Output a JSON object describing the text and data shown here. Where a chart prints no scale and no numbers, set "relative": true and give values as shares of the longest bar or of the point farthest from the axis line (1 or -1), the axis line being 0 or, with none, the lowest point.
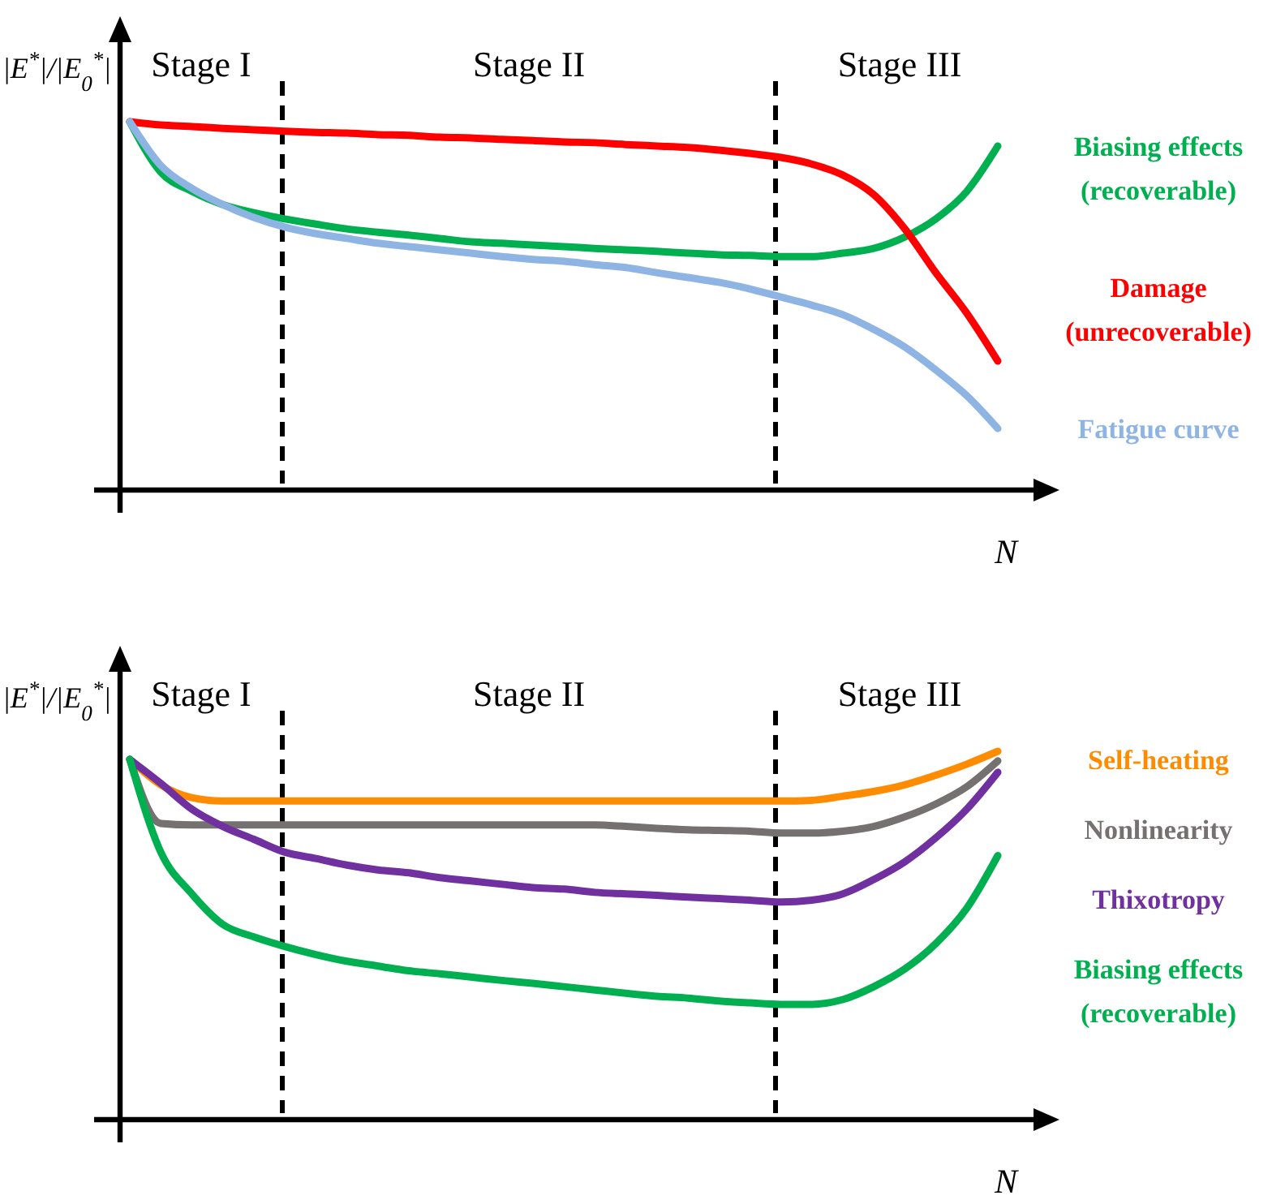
{
  "chart_data": [
    {
      "type": "line",
      "relative": true,
      "xlabel": "N",
      "ylabel": "|E$^{*}$|/|E$_{0}$$^{*}$|",
      "categories": [
        null,
        null,
        null,
        null,
        null,
        null,
        null,
        null,
        null,
        null,
        null,
        null,
        null,
        null,
        null,
        null,
        null,
        null,
        null,
        null,
        null,
        null,
        null,
        null,
        null,
        null,
        null,
        null,
        null
      ],
      "series": [
        {
          "name": "Biasing effects (recoverable)",
          "color": "#00b050",
          "values": [
            1.0,
            0.863,
            0.811,
            0.775,
            0.753,
            0.736,
            0.722,
            0.709,
            0.7,
            0.692,
            0.683,
            0.674,
            0.67,
            0.665,
            0.661,
            0.656,
            0.652,
            0.648,
            0.643,
            0.639,
            0.637,
            0.634,
            0.634,
            0.643,
            0.656,
            0.687,
            0.736,
            0.811,
            0.934
          ]
        },
        {
          "name": "Damage (unrecoverable)",
          "color": "#ff0000",
          "values": [
            1.0,
            0.991,
            0.987,
            0.982,
            0.978,
            0.974,
            0.971,
            0.969,
            0.965,
            0.963,
            0.958,
            0.956,
            0.952,
            0.949,
            0.945,
            0.943,
            0.938,
            0.934,
            0.93,
            0.923,
            0.914,
            0.903,
            0.885,
            0.855,
            0.802,
            0.709,
            0.59,
            0.48,
            0.35
          ]
        },
        {
          "name": "Fatigue curve",
          "color": "#8eb4e3",
          "values": [
            1.0,
            0.881,
            0.819,
            0.775,
            0.74,
            0.714,
            0.696,
            0.683,
            0.67,
            0.661,
            0.652,
            0.643,
            0.634,
            0.626,
            0.621,
            0.612,
            0.604,
            0.59,
            0.577,
            0.564,
            0.546,
            0.524,
            0.502,
            0.476,
            0.436,
            0.388,
            0.326,
            0.256,
            0.167
          ]
        }
      ],
      "annotations": [
        "Stage I",
        "Stage II",
        "Stage III"
      ]
    },
    {
      "type": "line",
      "relative": true,
      "xlabel": "N",
      "ylabel": "|E$^{*}$|/|E$_{0}$$^{*}$|",
      "categories": [
        null,
        null,
        null,
        null,
        null,
        null,
        null,
        null,
        null,
        null,
        null,
        null,
        null,
        null,
        null,
        null,
        null,
        null,
        null,
        null,
        null,
        null,
        null,
        null,
        null,
        null,
        null,
        null,
        null
      ],
      "series": [
        {
          "name": "Self-heating",
          "color": "#ff8c00",
          "values": [
            0.978,
            0.909,
            0.874,
            0.865,
            0.865,
            0.865,
            0.865,
            0.865,
            0.865,
            0.865,
            0.865,
            0.865,
            0.865,
            0.865,
            0.865,
            0.865,
            0.865,
            0.865,
            0.865,
            0.865,
            0.865,
            0.865,
            0.867,
            0.878,
            0.891,
            0.909,
            0.935,
            0.965,
            1.0
          ]
        },
        {
          "name": "Nonlinearity",
          "color": "#767171",
          "values": [
            0.978,
            0.804,
            0.8,
            0.8,
            0.8,
            0.8,
            0.8,
            0.8,
            0.8,
            0.8,
            0.8,
            0.8,
            0.8,
            0.8,
            0.8,
            0.8,
            0.796,
            0.791,
            0.787,
            0.785,
            0.783,
            0.778,
            0.778,
            0.783,
            0.796,
            0.822,
            0.857,
            0.904,
            0.974
          ]
        },
        {
          "name": "Thixotropy",
          "color": "#7030a0",
          "values": [
            0.978,
            0.913,
            0.843,
            0.796,
            0.761,
            0.726,
            0.709,
            0.691,
            0.678,
            0.67,
            0.657,
            0.648,
            0.639,
            0.63,
            0.626,
            0.617,
            0.613,
            0.609,
            0.604,
            0.6,
            0.596,
            0.591,
            0.596,
            0.613,
            0.652,
            0.7,
            0.765,
            0.843,
            0.943
          ]
        },
        {
          "name": "Biasing effects (recoverable)",
          "color": "#00b050",
          "values": [
            0.978,
            0.726,
            0.613,
            0.53,
            0.496,
            0.47,
            0.448,
            0.43,
            0.417,
            0.404,
            0.396,
            0.387,
            0.378,
            0.37,
            0.361,
            0.352,
            0.343,
            0.335,
            0.33,
            0.322,
            0.317,
            0.313,
            0.313,
            0.326,
            0.361,
            0.409,
            0.478,
            0.574,
            0.717
          ]
        }
      ],
      "annotations": [
        "Stage I",
        "Stage II",
        "Stage III"
      ]
    }
  ]
}
